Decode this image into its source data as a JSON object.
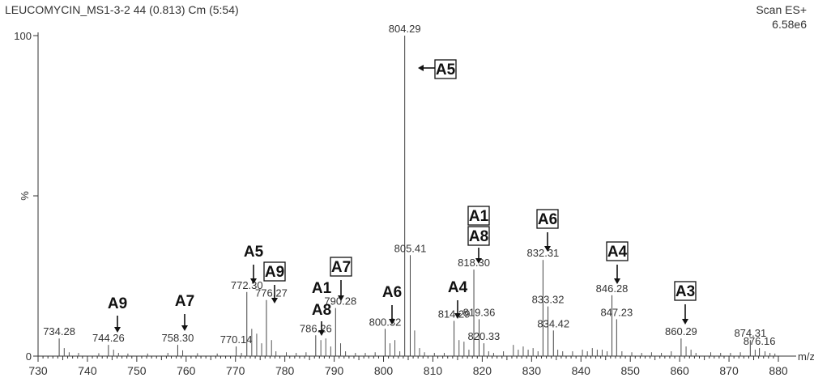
{
  "header": {
    "title": "LEUCOMYCIN_MS1-3-2 44 (0.813) Cm (5:54)",
    "scan_mode": "Scan ES+",
    "intensity": "6.58e6"
  },
  "chart_data": {
    "type": "bar",
    "title": "LEUCOMYCIN_MS1-3-2 44 (0.813) Cm (5:54)",
    "xlabel": "m/z",
    "ylabel": "%",
    "xlim": [
      730,
      880
    ],
    "ylim": [
      0,
      100
    ],
    "x_ticks": [
      730,
      740,
      750,
      760,
      770,
      780,
      790,
      800,
      810,
      820,
      830,
      840,
      850,
      860,
      870,
      880
    ],
    "y_ticks": [
      {
        "value": 0,
        "label": "0"
      },
      {
        "value": 50,
        "label": "%"
      },
      {
        "value": 100,
        "label": "100"
      }
    ],
    "grid": false,
    "labeled_peaks": [
      {
        "mz": 734.28,
        "intensity": 5.5,
        "label": "734.28"
      },
      {
        "mz": 744.26,
        "intensity": 3.5,
        "label": "744.26"
      },
      {
        "mz": 758.3,
        "intensity": 3.5,
        "label": "758.30"
      },
      {
        "mz": 770.14,
        "intensity": 3.0,
        "label": "770.14"
      },
      {
        "mz": 772.3,
        "intensity": 20.0,
        "label": "772.30"
      },
      {
        "mz": 776.27,
        "intensity": 17.5,
        "label": "776.27"
      },
      {
        "mz": 786.26,
        "intensity": 6.5,
        "label": "786.26"
      },
      {
        "mz": 790.28,
        "intensity": 15.0,
        "label": "790.28"
      },
      {
        "mz": 800.32,
        "intensity": 8.5,
        "label": "800.32"
      },
      {
        "mz": 804.29,
        "intensity": 100.0,
        "label": "804.29"
      },
      {
        "mz": 805.41,
        "intensity": 31.5,
        "label": "805.41"
      },
      {
        "mz": 814.29,
        "intensity": 11.0,
        "label": "814.29"
      },
      {
        "mz": 818.3,
        "intensity": 27.0,
        "label": "818.30"
      },
      {
        "mz": 819.36,
        "intensity": 11.5,
        "label": "819.36"
      },
      {
        "mz": 820.33,
        "intensity": 4.0,
        "label": "820.33"
      },
      {
        "mz": 832.31,
        "intensity": 30.0,
        "label": "832.31"
      },
      {
        "mz": 833.32,
        "intensity": 15.5,
        "label": "833.32"
      },
      {
        "mz": 834.42,
        "intensity": 8.0,
        "label": "834.42"
      },
      {
        "mz": 846.28,
        "intensity": 19.0,
        "label": "846.28"
      },
      {
        "mz": 847.23,
        "intensity": 11.5,
        "label": "847.23"
      },
      {
        "mz": 860.29,
        "intensity": 5.5,
        "label": "860.29"
      },
      {
        "mz": 874.31,
        "intensity": 5.0,
        "label": "874.31"
      },
      {
        "mz": 876.16,
        "intensity": 2.5,
        "label": "876.16"
      }
    ],
    "minor_peaks": [
      {
        "mz": 735.3,
        "intensity": 2.5
      },
      {
        "mz": 736.3,
        "intensity": 1.2
      },
      {
        "mz": 738.2,
        "intensity": 1.0
      },
      {
        "mz": 742.3,
        "intensity": 0.9
      },
      {
        "mz": 745.3,
        "intensity": 2.0
      },
      {
        "mz": 746.3,
        "intensity": 1.0
      },
      {
        "mz": 748.2,
        "intensity": 0.8
      },
      {
        "mz": 752.2,
        "intensity": 0.8
      },
      {
        "mz": 756.3,
        "intensity": 1.0
      },
      {
        "mz": 759.3,
        "intensity": 1.8
      },
      {
        "mz": 762.3,
        "intensity": 0.9
      },
      {
        "mz": 766.3,
        "intensity": 0.8
      },
      {
        "mz": 771.2,
        "intensity": 1.0
      },
      {
        "mz": 773.3,
        "intensity": 8.5
      },
      {
        "mz": 774.3,
        "intensity": 7.0
      },
      {
        "mz": 775.3,
        "intensity": 4.0
      },
      {
        "mz": 777.3,
        "intensity": 5.0
      },
      {
        "mz": 778.2,
        "intensity": 1.5
      },
      {
        "mz": 780.3,
        "intensity": 1.2
      },
      {
        "mz": 782.3,
        "intensity": 1.0
      },
      {
        "mz": 784.3,
        "intensity": 1.2
      },
      {
        "mz": 787.3,
        "intensity": 5.0
      },
      {
        "mz": 788.3,
        "intensity": 5.5
      },
      {
        "mz": 789.3,
        "intensity": 3.0
      },
      {
        "mz": 791.3,
        "intensity": 4.0
      },
      {
        "mz": 792.3,
        "intensity": 1.5
      },
      {
        "mz": 794.3,
        "intensity": 1.0
      },
      {
        "mz": 796.3,
        "intensity": 1.0
      },
      {
        "mz": 798.3,
        "intensity": 1.2
      },
      {
        "mz": 801.3,
        "intensity": 4.0
      },
      {
        "mz": 802.3,
        "intensity": 5.0
      },
      {
        "mz": 803.3,
        "intensity": 1.5
      },
      {
        "mz": 806.3,
        "intensity": 8.0
      },
      {
        "mz": 807.3,
        "intensity": 2.5
      },
      {
        "mz": 808.3,
        "intensity": 1.2
      },
      {
        "mz": 810.3,
        "intensity": 1.0
      },
      {
        "mz": 812.3,
        "intensity": 1.0
      },
      {
        "mz": 815.3,
        "intensity": 5.0
      },
      {
        "mz": 816.3,
        "intensity": 4.5
      },
      {
        "mz": 817.3,
        "intensity": 2.0
      },
      {
        "mz": 821.3,
        "intensity": 1.5
      },
      {
        "mz": 822.3,
        "intensity": 1.0
      },
      {
        "mz": 824.3,
        "intensity": 1.5
      },
      {
        "mz": 826.3,
        "intensity": 3.5
      },
      {
        "mz": 827.3,
        "intensity": 2.0
      },
      {
        "mz": 828.3,
        "intensity": 3.0
      },
      {
        "mz": 829.3,
        "intensity": 2.0
      },
      {
        "mz": 830.3,
        "intensity": 2.5
      },
      {
        "mz": 831.3,
        "intensity": 1.5
      },
      {
        "mz": 835.3,
        "intensity": 2.0
      },
      {
        "mz": 836.3,
        "intensity": 1.5
      },
      {
        "mz": 838.3,
        "intensity": 1.5
      },
      {
        "mz": 840.3,
        "intensity": 2.0
      },
      {
        "mz": 841.3,
        "intensity": 1.5
      },
      {
        "mz": 842.3,
        "intensity": 2.5
      },
      {
        "mz": 843.3,
        "intensity": 2.0
      },
      {
        "mz": 844.3,
        "intensity": 2.0
      },
      {
        "mz": 845.3,
        "intensity": 1.5
      },
      {
        "mz": 848.3,
        "intensity": 1.5
      },
      {
        "mz": 850.3,
        "intensity": 1.2
      },
      {
        "mz": 852.3,
        "intensity": 1.0
      },
      {
        "mz": 854.3,
        "intensity": 1.2
      },
      {
        "mz": 856.3,
        "intensity": 1.0
      },
      {
        "mz": 858.3,
        "intensity": 1.5
      },
      {
        "mz": 861.3,
        "intensity": 3.0
      },
      {
        "mz": 862.3,
        "intensity": 2.0
      },
      {
        "mz": 863.3,
        "intensity": 1.0
      },
      {
        "mz": 866.3,
        "intensity": 1.2
      },
      {
        "mz": 868.3,
        "intensity": 1.0
      },
      {
        "mz": 870.3,
        "intensity": 1.0
      },
      {
        "mz": 872.3,
        "intensity": 1.2
      },
      {
        "mz": 875.3,
        "intensity": 2.0
      },
      {
        "mz": 877.3,
        "intensity": 1.5
      },
      {
        "mz": 878.3,
        "intensity": 1.0
      },
      {
        "mz": 879.3,
        "intensity": 0.8
      }
    ],
    "annotations": [
      {
        "text": "A5",
        "boxed": true,
        "mz": 804.29,
        "arrow": "left"
      },
      {
        "text": "A9",
        "boxed": false,
        "mz": 744.26,
        "arrow": "down"
      },
      {
        "text": "A7",
        "boxed": false,
        "mz": 758.3,
        "arrow": "down"
      },
      {
        "text": "A5",
        "boxed": false,
        "mz": 772.3,
        "arrow": "down"
      },
      {
        "text": "A9",
        "boxed": true,
        "mz": 776.27,
        "arrow": "down"
      },
      {
        "text": "A1",
        "boxed": false,
        "mz": 786.26,
        "arrow": "none"
      },
      {
        "text": "A8",
        "boxed": false,
        "mz": 786.26,
        "arrow": "down"
      },
      {
        "text": "A7",
        "boxed": true,
        "mz": 790.28,
        "arrow": "down"
      },
      {
        "text": "A6",
        "boxed": false,
        "mz": 800.32,
        "arrow": "down"
      },
      {
        "text": "A4",
        "boxed": false,
        "mz": 814.29,
        "arrow": "down"
      },
      {
        "text": "A1",
        "boxed": true,
        "mz": 818.3,
        "arrow": "none"
      },
      {
        "text": "A8",
        "boxed": true,
        "mz": 818.3,
        "arrow": "down"
      },
      {
        "text": "A6",
        "boxed": true,
        "mz": 832.31,
        "arrow": "down"
      },
      {
        "text": "A4",
        "boxed": true,
        "mz": 846.28,
        "arrow": "down"
      },
      {
        "text": "A3",
        "boxed": true,
        "mz": 860.29,
        "arrow": "down"
      }
    ]
  }
}
